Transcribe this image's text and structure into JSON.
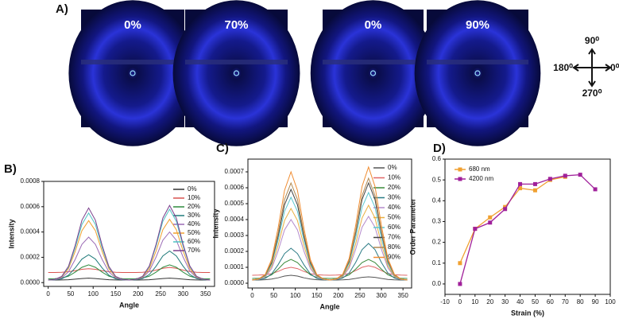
{
  "panel_a": {
    "panel_label": "A)",
    "images": [
      {
        "label": "0%"
      },
      {
        "label": "70%"
      },
      {
        "label": "0%"
      },
      {
        "label": "90%"
      }
    ],
    "compass": {
      "up": "90⁰",
      "right": "0⁰",
      "left": "180⁰",
      "down": "270⁰"
    }
  },
  "chart_data": [
    {
      "type": "line",
      "panel_label": "B)",
      "x_label": "Angle",
      "y_label": "Intensity",
      "legend": "upper-right",
      "x": [
        0,
        15,
        30,
        45,
        60,
        75,
        90,
        105,
        120,
        135,
        150,
        165,
        180,
        195,
        210,
        225,
        240,
        255,
        270,
        285,
        300,
        315,
        330,
        345,
        360
      ],
      "xlim": [
        -10,
        370
      ],
      "xticks": [
        0,
        50,
        100,
        150,
        200,
        250,
        300,
        350
      ],
      "ylim": [
        -3e-05,
        0.0008
      ],
      "yticks": [
        {
          "value": 0,
          "label": "0.0000"
        },
        0.0002,
        0.0004,
        0.0006,
        0.0008
      ],
      "series": [
        {
          "name": "0%",
          "color": "#333333",
          "values": [
            2e-05,
            2e-05,
            2.1e-05,
            2.3e-05,
            2.7e-05,
            3.2e-05,
            3.5e-05,
            3.2e-05,
            2.7e-05,
            2.3e-05,
            2.1e-05,
            2e-05,
            2e-05,
            2e-05,
            2.1e-05,
            2.3e-05,
            2.7e-05,
            3.2e-05,
            3.5e-05,
            3.2e-05,
            2.7e-05,
            2.3e-05,
            2.1e-05,
            2e-05,
            2e-05
          ]
        },
        {
          "name": "10%",
          "color": "#d9534f",
          "values": [
            8e-05,
            8e-05,
            8.2e-05,
            8.6e-05,
            9.4e-05,
            0.000105,
            0.00011,
            0.000105,
            9.4e-05,
            8.6e-05,
            8.2e-05,
            8e-05,
            8e-05,
            8e-05,
            8.2e-05,
            8.8e-05,
            9.9e-05,
            0.000113,
            0.00012,
            0.000113,
            9.9e-05,
            8.8e-05,
            8.2e-05,
            8e-05,
            8e-05
          ]
        },
        {
          "name": "20%",
          "color": "#2e8b3e",
          "values": [
            3e-05,
            3.1e-05,
            3.6e-05,
            5.1e-05,
            8.3e-05,
            0.000121,
            0.00014,
            0.000121,
            8.3e-05,
            5.1e-05,
            3.6e-05,
            3.1e-05,
            3e-05,
            3.1e-05,
            3.6e-05,
            5.1e-05,
            8.3e-05,
            0.000121,
            0.00014,
            0.000121,
            8.3e-05,
            5.1e-05,
            3.6e-05,
            3.1e-05,
            3e-05
          ]
        },
        {
          "name": "30%",
          "color": "#1f7a7a",
          "values": [
            2e-05,
            2.2e-05,
            3e-05,
            5.8e-05,
            0.000116,
            0.000186,
            0.00022,
            0.000186,
            0.000116,
            5.8e-05,
            3e-05,
            2.2e-05,
            2e-05,
            2.2e-05,
            3.2e-05,
            6.4e-05,
            0.00013,
            0.000211,
            0.00025,
            0.000211,
            0.00013,
            6.4e-05,
            3.2e-05,
            2.2e-05,
            2e-05
          ]
        },
        {
          "name": "40%",
          "color": "#9b6bb5",
          "values": [
            2e-05,
            2.3e-05,
            3.7e-05,
            8.5e-05,
            0.000183,
            0.000302,
            0.00036,
            0.000302,
            0.000183,
            8.5e-05,
            3.7e-05,
            2.3e-05,
            2e-05,
            2.4e-05,
            3.9e-05,
            9.2e-05,
            0.000202,
            0.000335,
            0.0004,
            0.000335,
            0.000202,
            9.2e-05,
            3.9e-05,
            2.4e-05,
            2e-05
          ]
        },
        {
          "name": "50%",
          "color": "#f0a030",
          "values": [
            2e-05,
            2.5e-05,
            4.4e-05,
            0.000109,
            0.000246,
            0.00041,
            0.00049,
            0.00041,
            0.000246,
            0.000109,
            4.4e-05,
            2.5e-05,
            2e-05,
            2.5e-05,
            4.4e-05,
            0.000111,
            0.00025,
            0.000418,
            0.0005,
            0.000418,
            0.00025,
            0.000111,
            4.4e-05,
            2.5e-05,
            2e-05
          ]
        },
        {
          "name": "60%",
          "color": "#4fc3c3",
          "values": [
            2e-05,
            2.5e-05,
            4.7e-05,
            0.000121,
            0.000274,
            0.00046,
            0.00055,
            0.00046,
            0.000274,
            0.000121,
            4.7e-05,
            2.5e-05,
            2e-05,
            2.6e-05,
            4.8e-05,
            0.000126,
            0.000289,
            0.000485,
            0.00058,
            0.000485,
            0.000289,
            0.000126,
            4.8e-05,
            2.6e-05,
            2e-05
          ]
        },
        {
          "name": "70%",
          "color": "#7b3f8c",
          "values": [
            2e-05,
            2.6e-05,
            4.9e-05,
            0.000128,
            0.000294,
            0.000493,
            0.00059,
            0.000493,
            0.000294,
            0.000128,
            4.9e-05,
            2.6e-05,
            2e-05,
            2.6e-05,
            5e-05,
            0.000132,
            0.000303,
            0.00051,
            0.00061,
            0.00051,
            0.000303,
            0.000132,
            5e-05,
            2.6e-05,
            2e-05
          ]
        }
      ]
    },
    {
      "type": "line",
      "panel_label": "C)",
      "x_label": "Angle",
      "y_label": "Intensity",
      "legend": "upper-right",
      "x": [
        0,
        15,
        30,
        45,
        60,
        75,
        90,
        105,
        120,
        135,
        150,
        165,
        180,
        195,
        210,
        225,
        240,
        255,
        270,
        285,
        300,
        315,
        330,
        345,
        360
      ],
      "xlim": [
        -10,
        370
      ],
      "xticks": [
        0,
        50,
        100,
        150,
        200,
        250,
        300,
        350
      ],
      "ylim": [
        -3e-05,
        0.00078
      ],
      "yticks": [
        {
          "value": 0,
          "label": "0.0000"
        },
        0.0001,
        0.0002,
        0.0003,
        0.0004,
        0.0005,
        0.0006,
        0.0007
      ],
      "series": [
        {
          "name": "0%",
          "color": "#555555",
          "values": [
            2e-05,
            2e-05,
            2.2e-05,
            2.6e-05,
            3.4e-05,
            4.5e-05,
            5e-05,
            4.5e-05,
            3.4e-05,
            2.6e-05,
            2.2e-05,
            2e-05,
            2e-05,
            2e-05,
            2.1e-05,
            2.4e-05,
            3e-05,
            3.7e-05,
            4e-05,
            3.7e-05,
            3e-05,
            2.4e-05,
            2.1e-05,
            2e-05,
            2e-05
          ]
        },
        {
          "name": "10%",
          "color": "#e06666",
          "values": [
            5e-05,
            5.1e-05,
            5.3e-05,
            6e-05,
            7.4e-05,
            9.2e-05,
            0.0001,
            9.2e-05,
            7.4e-05,
            6e-05,
            5.3e-05,
            5.1e-05,
            5e-05,
            5.1e-05,
            5.3e-05,
            6.1e-05,
            7.9e-05,
            0.0001,
            0.00011,
            0.0001,
            7.9e-05,
            6.1e-05,
            5.3e-05,
            5.1e-05,
            5e-05
          ]
        },
        {
          "name": "20%",
          "color": "#3a8a3a",
          "values": [
            3e-05,
            3.1e-05,
            3.6e-05,
            5.3e-05,
            8.8e-05,
            0.00013,
            0.00015,
            0.00013,
            8.8e-05,
            5.3e-05,
            3.6e-05,
            3.1e-05,
            3e-05,
            3.1e-05,
            3.6e-05,
            5.3e-05,
            8.8e-05,
            0.00013,
            0.00015,
            0.00013,
            8.8e-05,
            5.3e-05,
            3.6e-05,
            3.1e-05,
            3e-05
          ]
        },
        {
          "name": "30%",
          "color": "#2b7b85",
          "values": [
            2e-05,
            2.2e-05,
            3e-05,
            5.8e-05,
            0.000116,
            0.000186,
            0.00022,
            0.000186,
            0.000116,
            5.8e-05,
            3e-05,
            2.2e-05,
            2e-05,
            2.2e-05,
            3.2e-05,
            6.4e-05,
            0.00013,
            0.000211,
            0.00025,
            0.000211,
            0.00013,
            6.4e-05,
            3.2e-05,
            2.2e-05,
            2e-05
          ]
        },
        {
          "name": "40%",
          "color": "#b48acb",
          "values": [
            2e-05,
            2.4e-05,
            3.9e-05,
            9.2e-05,
            0.000202,
            0.000335,
            0.0004,
            0.000335,
            0.000202,
            9.2e-05,
            3.9e-05,
            2.4e-05,
            2e-05,
            2.4e-05,
            4e-05,
            9.6e-05,
            0.000212,
            0.000352,
            0.00042,
            0.000352,
            0.000212,
            9.6e-05,
            4e-05,
            2.4e-05,
            2e-05
          ]
        },
        {
          "name": "50%",
          "color": "#e8b040",
          "values": [
            2e-05,
            2.5e-05,
            4.3e-05,
            0.000106,
            0.000236,
            0.000394,
            0.00047,
            0.000394,
            0.000236,
            0.000106,
            4.3e-05,
            2.5e-05,
            2e-05,
            2.5e-05,
            4.4e-05,
            0.000109,
            0.000246,
            0.00041,
            0.00049,
            0.00041,
            0.000246,
            0.000109,
            4.4e-05,
            2.5e-05,
            2e-05
          ]
        },
        {
          "name": "60%",
          "color": "#5bc8d0",
          "values": [
            2e-05,
            2.5e-05,
            4.6e-05,
            0.000119,
            0.00027,
            0.000452,
            0.00054,
            0.000452,
            0.00027,
            0.000119,
            4.6e-05,
            2.5e-05,
            2e-05,
            2.6e-05,
            4.8e-05,
            0.000125,
            0.000284,
            0.000477,
            0.00057,
            0.000477,
            0.000284,
            0.000125,
            4.8e-05,
            2.6e-05,
            2e-05
          ]
        },
        {
          "name": "70%",
          "color": "#444444",
          "values": [
            2e-05,
            2.6e-05,
            4.9e-05,
            0.000128,
            0.000294,
            0.000493,
            0.00059,
            0.000493,
            0.000294,
            0.000128,
            4.9e-05,
            2.6e-05,
            2e-05,
            2.6e-05,
            5.1e-05,
            0.000136,
            0.000313,
            0.000526,
            0.00063,
            0.000526,
            0.000313,
            0.000136,
            5.1e-05,
            2.6e-05,
            2e-05
          ]
        },
        {
          "name": "80%",
          "color": "#b08850",
          "values": [
            2e-05,
            2.6e-05,
            5.1e-05,
            0.000136,
            0.000313,
            0.000526,
            0.00063,
            0.000526,
            0.000313,
            0.000136,
            5.1e-05,
            2.6e-05,
            2e-05,
            2.6e-05,
            5.2e-05,
            0.000142,
            0.000327,
            0.000551,
            0.00066,
            0.000551,
            0.000327,
            0.000142,
            5.2e-05,
            2.6e-05,
            2e-05
          ]
        },
        {
          "name": "90%",
          "color": "#f08c30",
          "values": [
            2e-05,
            2.7e-05,
            5.4e-05,
            0.000149,
            0.000346,
            0.000584,
            0.0007,
            0.000584,
            0.000346,
            0.000149,
            5.4e-05,
            2.7e-05,
            2e-05,
            2.7e-05,
            5.6e-05,
            0.000155,
            0.000361,
            0.000609,
            0.00073,
            0.000609,
            0.000361,
            0.000155,
            5.6e-05,
            2.7e-05,
            2e-05
          ]
        }
      ]
    },
    {
      "type": "line",
      "panel_label": "D)",
      "x_label": "Strain (%)",
      "y_label": "Order Parameter",
      "legend": "upper-left",
      "markers": "square",
      "xlim": [
        -10,
        100
      ],
      "xticks": [
        -10,
        0,
        10,
        20,
        30,
        40,
        50,
        60,
        70,
        80,
        90,
        100
      ],
      "ylim": [
        -0.05,
        0.6
      ],
      "yticks": [
        {
          "value": 0,
          "label": "0.0"
        },
        0.1,
        0.2,
        0.3,
        0.4,
        0.5,
        0.6
      ],
      "series": [
        {
          "name": "680 nm",
          "color": "#f0a030",
          "x": [
            0,
            10,
            20,
            30,
            40,
            50,
            60,
            70
          ],
          "values": [
            0.1,
            0.265,
            0.32,
            0.37,
            0.46,
            0.45,
            0.5,
            0.515
          ]
        },
        {
          "name": "4200 nm",
          "color": "#a0209a",
          "x": [
            0,
            10,
            20,
            30,
            40,
            50,
            60,
            70,
            80,
            90
          ],
          "values": [
            0.0,
            0.265,
            0.295,
            0.36,
            0.48,
            0.48,
            0.505,
            0.52,
            0.525,
            0.455
          ]
        }
      ]
    }
  ]
}
